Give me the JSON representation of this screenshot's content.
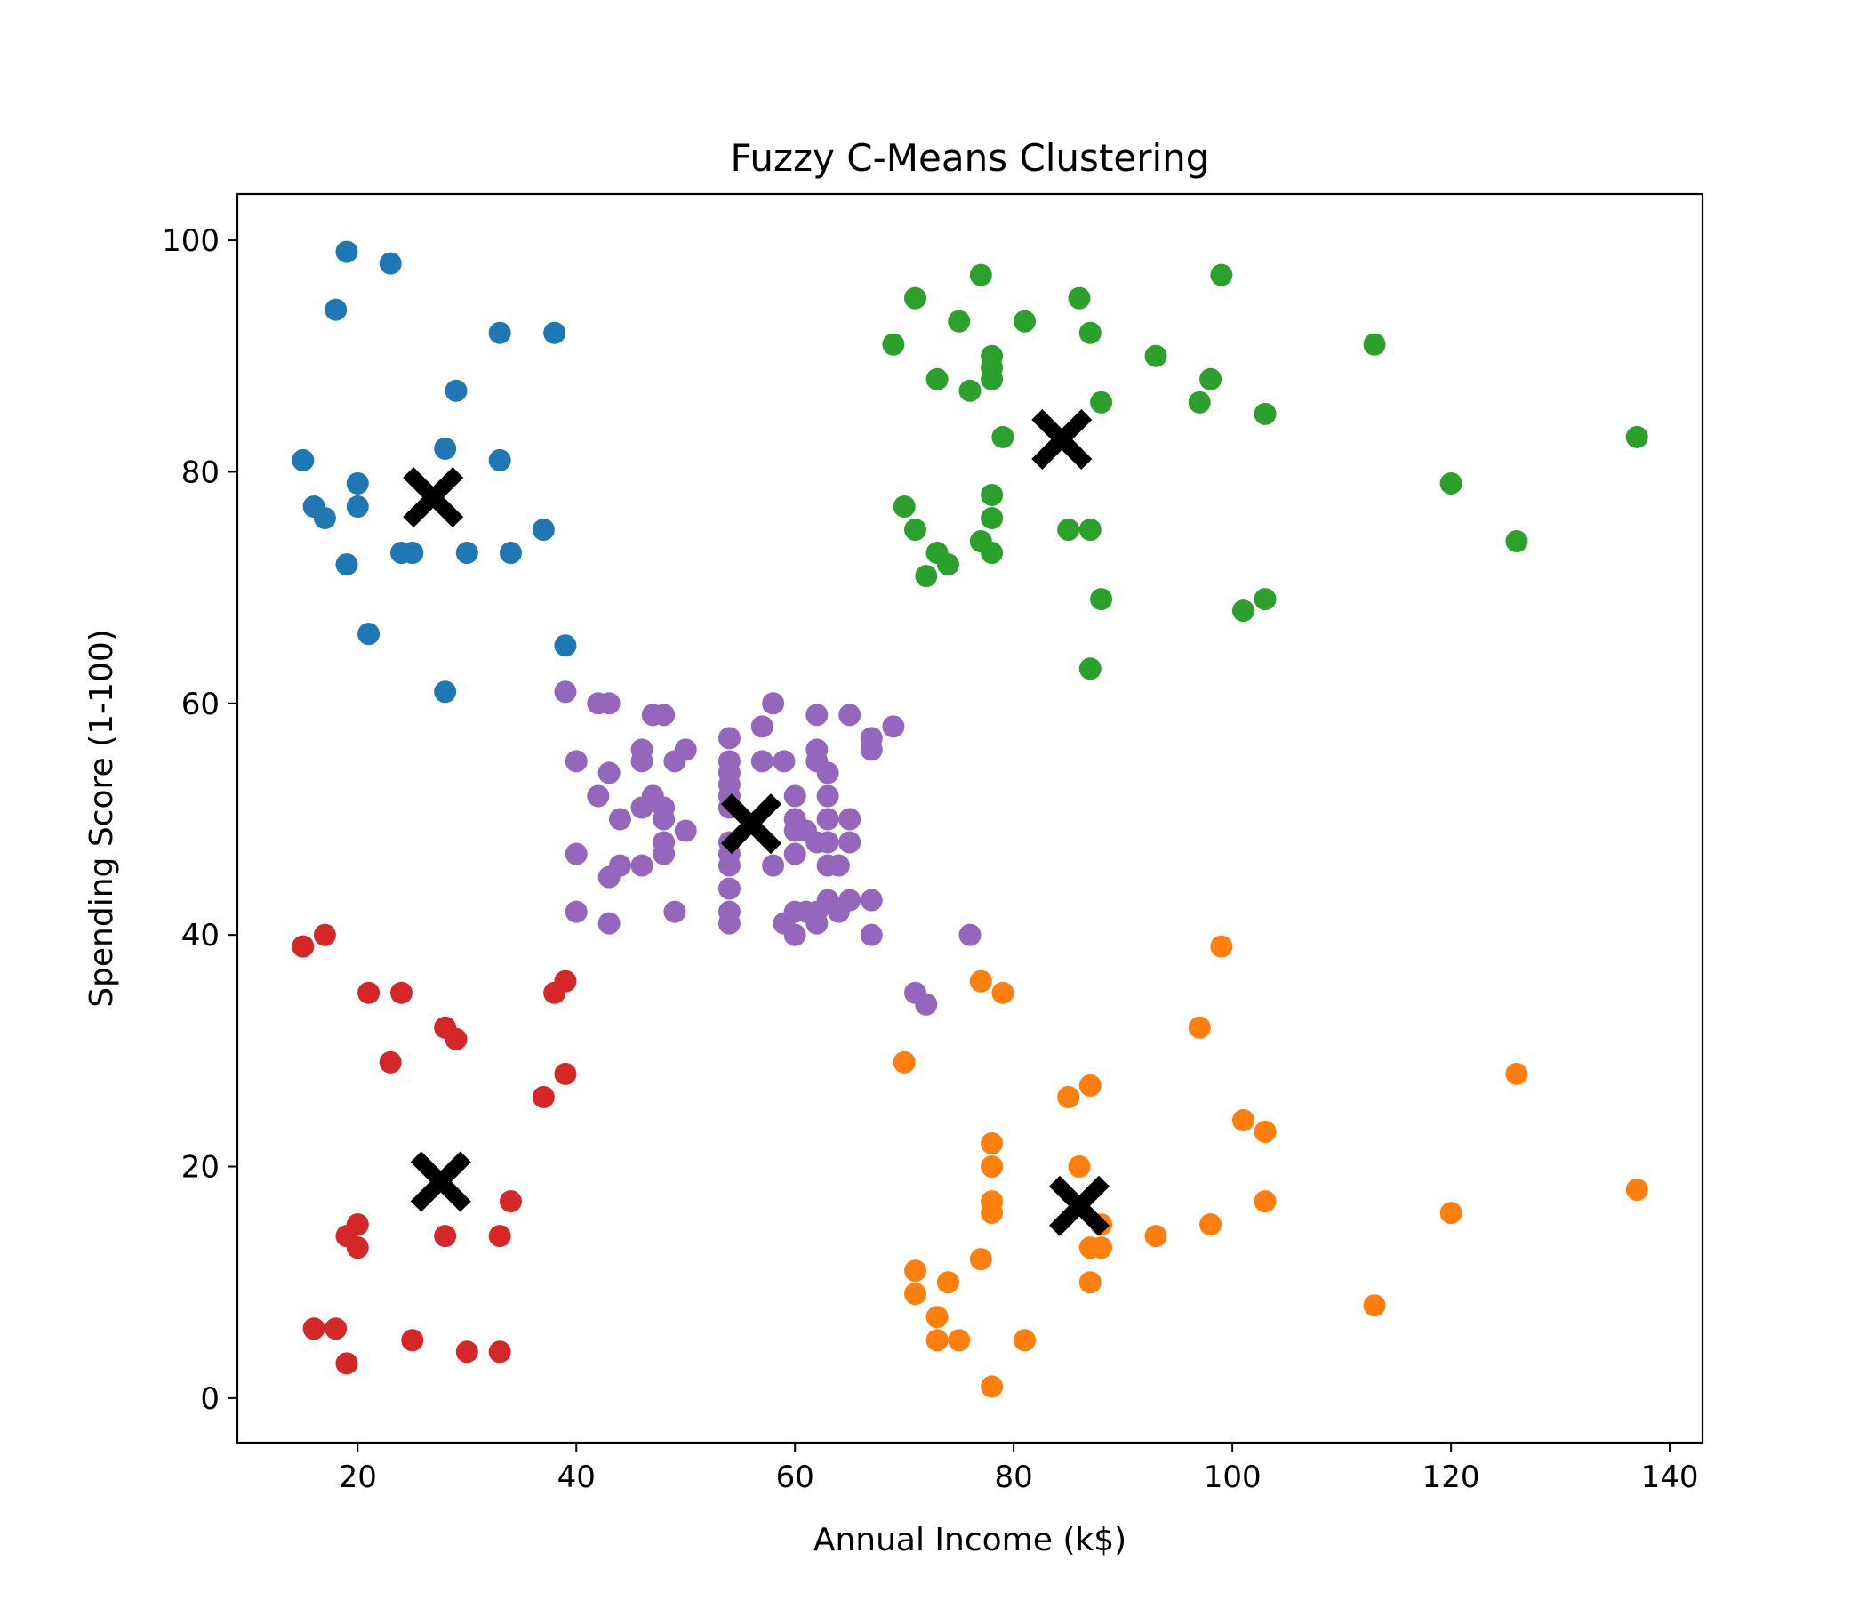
{
  "chart_data": {
    "type": "scatter",
    "title": "Fuzzy C-Means Clustering",
    "xlabel": "Annual Income (k$)",
    "ylabel": "Spending Score (1-100)",
    "xlim": [
      9,
      143
    ],
    "ylim": [
      -3.85,
      104
    ],
    "xticks": [
      20,
      40,
      60,
      80,
      100,
      120,
      140
    ],
    "yticks": [
      0,
      20,
      40,
      60,
      80,
      100
    ],
    "grid": false,
    "series": [
      {
        "color": "#1f77b4",
        "points": [
          [
            15,
            81
          ],
          [
            16,
            77
          ],
          [
            17,
            76
          ],
          [
            18,
            94
          ],
          [
            19,
            99
          ],
          [
            19,
            72
          ],
          [
            20,
            77
          ],
          [
            20,
            79
          ],
          [
            21,
            66
          ],
          [
            23,
            98
          ],
          [
            24,
            73
          ],
          [
            25,
            73
          ],
          [
            28,
            82
          ],
          [
            28,
            61
          ],
          [
            29,
            87
          ],
          [
            30,
            73
          ],
          [
            33,
            92
          ],
          [
            33,
            81
          ],
          [
            34,
            73
          ],
          [
            37,
            75
          ],
          [
            38,
            92
          ],
          [
            39,
            65
          ]
        ]
      },
      {
        "color": "#ff7f0e",
        "points": [
          [
            70,
            29
          ],
          [
            71,
            11
          ],
          [
            71,
            9
          ],
          [
            73,
            7
          ],
          [
            73,
            5
          ],
          [
            74,
            10
          ],
          [
            75,
            5
          ],
          [
            77,
            36
          ],
          [
            77,
            12
          ],
          [
            78,
            22
          ],
          [
            78,
            20
          ],
          [
            78,
            17
          ],
          [
            78,
            16
          ],
          [
            78,
            1
          ],
          [
            79,
            35
          ],
          [
            81,
            5
          ],
          [
            85,
            26
          ],
          [
            86,
            20
          ],
          [
            87,
            27
          ],
          [
            87,
            13
          ],
          [
            87,
            10
          ],
          [
            88,
            15
          ],
          [
            88,
            13
          ],
          [
            93,
            14
          ],
          [
            97,
            32
          ],
          [
            98,
            15
          ],
          [
            99,
            39
          ],
          [
            101,
            24
          ],
          [
            103,
            23
          ],
          [
            103,
            17
          ],
          [
            113,
            8
          ],
          [
            120,
            16
          ],
          [
            126,
            28
          ],
          [
            137,
            18
          ]
        ]
      },
      {
        "color": "#2ca02c",
        "points": [
          [
            69,
            91
          ],
          [
            70,
            77
          ],
          [
            71,
            95
          ],
          [
            71,
            75
          ],
          [
            72,
            71
          ],
          [
            73,
            88
          ],
          [
            73,
            73
          ],
          [
            74,
            72
          ],
          [
            75,
            93
          ],
          [
            76,
            87
          ],
          [
            77,
            97
          ],
          [
            77,
            74
          ],
          [
            78,
            90
          ],
          [
            78,
            89
          ],
          [
            78,
            88
          ],
          [
            78,
            78
          ],
          [
            78,
            76
          ],
          [
            78,
            73
          ],
          [
            79,
            83
          ],
          [
            81,
            93
          ],
          [
            85,
            75
          ],
          [
            86,
            95
          ],
          [
            87,
            92
          ],
          [
            87,
            75
          ],
          [
            87,
            63
          ],
          [
            88,
            86
          ],
          [
            88,
            69
          ],
          [
            93,
            90
          ],
          [
            97,
            86
          ],
          [
            98,
            88
          ],
          [
            99,
            97
          ],
          [
            101,
            68
          ],
          [
            103,
            85
          ],
          [
            103,
            69
          ],
          [
            113,
            91
          ],
          [
            120,
            79
          ],
          [
            126,
            74
          ],
          [
            137,
            83
          ]
        ]
      },
      {
        "color": "#d62728",
        "points": [
          [
            15,
            39
          ],
          [
            16,
            6
          ],
          [
            17,
            40
          ],
          [
            18,
            6
          ],
          [
            19,
            3
          ],
          [
            19,
            14
          ],
          [
            20,
            15
          ],
          [
            20,
            13
          ],
          [
            21,
            35
          ],
          [
            23,
            29
          ],
          [
            24,
            35
          ],
          [
            25,
            5
          ],
          [
            28,
            32
          ],
          [
            28,
            14
          ],
          [
            29,
            31
          ],
          [
            30,
            4
          ],
          [
            33,
            4
          ],
          [
            33,
            14
          ],
          [
            34,
            17
          ],
          [
            37,
            26
          ],
          [
            38,
            35
          ],
          [
            39,
            36
          ],
          [
            39,
            28
          ]
        ]
      },
      {
        "color": "#9467bd",
        "points": [
          [
            39,
            61
          ],
          [
            40,
            55
          ],
          [
            40,
            47
          ],
          [
            40,
            42
          ],
          [
            42,
            52
          ],
          [
            42,
            60
          ],
          [
            43,
            54
          ],
          [
            43,
            60
          ],
          [
            43,
            45
          ],
          [
            43,
            41
          ],
          [
            44,
            50
          ],
          [
            44,
            46
          ],
          [
            46,
            51
          ],
          [
            46,
            46
          ],
          [
            46,
            56
          ],
          [
            46,
            55
          ],
          [
            47,
            52
          ],
          [
            47,
            59
          ],
          [
            48,
            51
          ],
          [
            48,
            59
          ],
          [
            48,
            50
          ],
          [
            48,
            48
          ],
          [
            48,
            47
          ],
          [
            49,
            55
          ],
          [
            49,
            42
          ],
          [
            50,
            49
          ],
          [
            50,
            56
          ],
          [
            54,
            47
          ],
          [
            54,
            54
          ],
          [
            54,
            53
          ],
          [
            54,
            48
          ],
          [
            54,
            52
          ],
          [
            54,
            42
          ],
          [
            54,
            51
          ],
          [
            54,
            55
          ],
          [
            54,
            41
          ],
          [
            54,
            44
          ],
          [
            54,
            57
          ],
          [
            54,
            46
          ],
          [
            57,
            58
          ],
          [
            57,
            55
          ],
          [
            58,
            60
          ],
          [
            58,
            46
          ],
          [
            59,
            55
          ],
          [
            59,
            41
          ],
          [
            60,
            49
          ],
          [
            60,
            40
          ],
          [
            60,
            42
          ],
          [
            60,
            52
          ],
          [
            60,
            47
          ],
          [
            60,
            50
          ],
          [
            61,
            42
          ],
          [
            61,
            49
          ],
          [
            62,
            41
          ],
          [
            62,
            48
          ],
          [
            62,
            59
          ],
          [
            62,
            55
          ],
          [
            62,
            56
          ],
          [
            62,
            42
          ],
          [
            63,
            50
          ],
          [
            63,
            46
          ],
          [
            63,
            43
          ],
          [
            63,
            48
          ],
          [
            63,
            52
          ],
          [
            63,
            54
          ],
          [
            64,
            42
          ],
          [
            64,
            46
          ],
          [
            65,
            48
          ],
          [
            65,
            50
          ],
          [
            65,
            43
          ],
          [
            65,
            59
          ],
          [
            67,
            43
          ],
          [
            67,
            57
          ],
          [
            67,
            56
          ],
          [
            67,
            40
          ],
          [
            69,
            58
          ],
          [
            71,
            35
          ],
          [
            72,
            34
          ],
          [
            76,
            40
          ]
        ]
      }
    ],
    "centroids": {
      "color": "#000000",
      "marker": "X",
      "points": [
        [
          26.9,
          77.8
        ],
        [
          86.0,
          16.6
        ],
        [
          84.4,
          82.8
        ],
        [
          27.6,
          18.7
        ],
        [
          56.0,
          49.6
        ]
      ]
    }
  }
}
